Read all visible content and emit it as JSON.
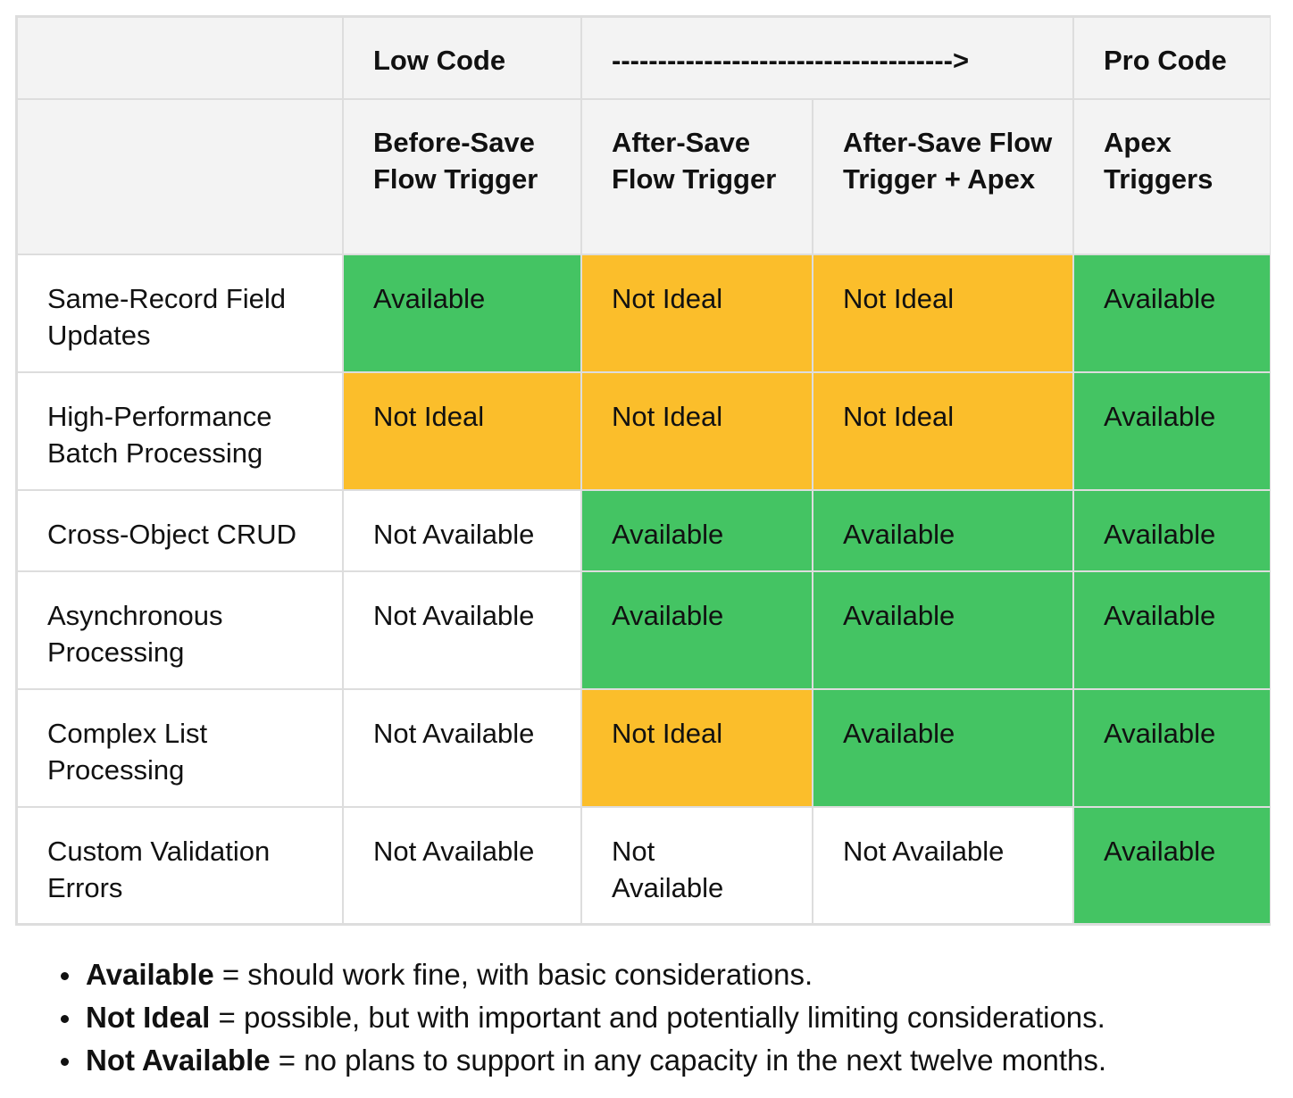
{
  "header_row_1": [
    "",
    "Low Code",
    "------------------------------------->",
    "Pro Code"
  ],
  "header_row_2": [
    "",
    "Before-Save Flow Trigger",
    "After-Save Flow Trigger",
    "After-Save Flow Trigger + Apex",
    "Apex Triggers"
  ],
  "rows": [
    {
      "label": "Same-Record Field Updates",
      "cells": [
        "Available",
        "Not Ideal",
        "Not Ideal",
        "Available"
      ]
    },
    {
      "label": "High-Performance Batch Processing",
      "cells": [
        "Not Ideal",
        "Not Ideal",
        "Not Ideal",
        "Available"
      ]
    },
    {
      "label": "Cross-Object CRUD",
      "cells": [
        "Not Available",
        "Available",
        "Available",
        "Available"
      ]
    },
    {
      "label": "Asynchronous Processing",
      "cells": [
        "Not Available",
        "Available",
        "Available",
        "Available"
      ]
    },
    {
      "label": "Complex List Processing",
      "cells": [
        "Not Available",
        "Not Ideal",
        "Available",
        "Available"
      ]
    },
    {
      "label": "Custom Validation Errors",
      "cells": [
        "Not Available",
        "Not Available",
        "Not Available",
        "Available"
      ]
    }
  ],
  "status_colors": {
    "Available": "#44c463",
    "Not Ideal": "#fbbe2b",
    "Not Available": "#ffffff"
  },
  "legend": [
    {
      "term": "Available",
      "text": " = should work fine, with basic considerations."
    },
    {
      "term": "Not Ideal",
      "text": " = possible, but with important and potentially limiting considerations."
    },
    {
      "term": "Not Available",
      "text": " = no plans to support in any capacity in the next twelve months."
    }
  ]
}
